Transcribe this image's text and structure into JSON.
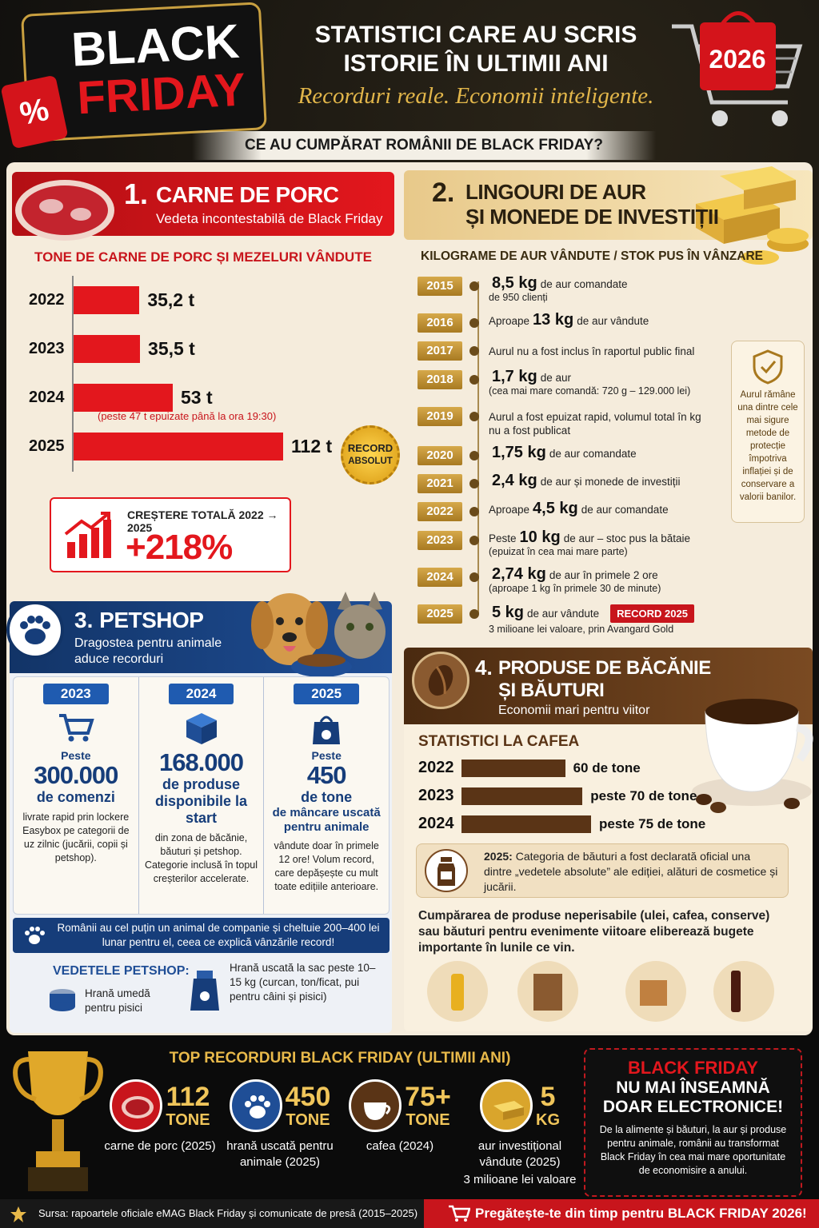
{
  "header": {
    "badge_line1": "BLACK",
    "badge_line2": "FRIDAY",
    "percent": "%",
    "title_line1": "STATISTICI CARE AU SCRIS",
    "title_line2": "ISTORIE ÎN ULTIMII ANI",
    "tagline": "Recorduri reale. Economii inteligente.",
    "year": "2026",
    "question": "CE AU CUMPĂRAT ROMÂNII DE BLACK FRIDAY?"
  },
  "pork": {
    "number": "1.",
    "title": "CARNE DE PORC",
    "subtitle": "Vedeta incontestabilă de Black Friday",
    "chart_title": "TONE DE CARNE DE PORC ȘI MEZELURI VÂNDUTE",
    "categories": [
      "2022",
      "2023",
      "2024",
      "2025"
    ],
    "values": [
      35.2,
      35.5,
      53,
      112
    ],
    "value_labels": [
      "35,2 t",
      "35,5 t",
      "53 t",
      "112 t"
    ],
    "color": "#e3171d",
    "note": "(peste 47 t epuizate până la ora 19:30)",
    "badge_line1": "RECORD",
    "badge_line2": "ABSOLUT",
    "growth_label": "CREȘTERE TOTALĂ 2022 → 2025",
    "growth_value": "+218%"
  },
  "gold": {
    "number": "2.",
    "title_line1": "LINGOURI DE AUR",
    "title_line2": "ȘI MONEDE DE INVESTIȚII",
    "subtitle": "KILOGRAME DE AUR VÂNDUTE / STOK PUS ÎN VÂNZARE",
    "timeline": [
      {
        "year": "2015",
        "big": "8,5 kg",
        "text": "de aur comandate",
        "detail": "de 950 clienți"
      },
      {
        "year": "2016",
        "pre": "Aproape",
        "big": "13 kg",
        "text": "de aur vândute"
      },
      {
        "year": "2017",
        "text": "Aurul nu a fost inclus în raportul public final"
      },
      {
        "year": "2018",
        "big": "1,7 kg",
        "text": "de aur",
        "detail": "(cea mai mare comandă: 720 g – 129.000 lei)"
      },
      {
        "year": "2019",
        "text": "Aurul a fost epuizat rapid, volumul total în kg",
        "detail": "nu a fost publicat"
      },
      {
        "year": "2020",
        "big": "1,75 kg",
        "text": "de aur comandate"
      },
      {
        "year": "2021",
        "big": "2,4 kg",
        "text": "de aur și monede de investiții"
      },
      {
        "year": "2022",
        "pre": "Aproape",
        "big": "4,5 kg",
        "text": "de aur comandate"
      },
      {
        "year": "2023",
        "pre": "Peste",
        "big": "10 kg",
        "text": "de aur – stoc pus la bătaie",
        "detail": "(epuizat în cea mai mare parte)"
      },
      {
        "year": "2024",
        "big": "2,74 kg",
        "text": "de aur în primele 2 ore",
        "detail": "(aproape 1 kg în primele 30 de minute)"
      },
      {
        "year": "2025",
        "big": "5 kg",
        "text": "de aur vândute",
        "badge": "RECORD 2025",
        "detail": "3 milioane lei valoare, prin Avangard Gold"
      }
    ],
    "side_note": "Aurul rămâne una dintre cele mai sigure metode de protecție împotriva inflației și de conservare a valorii banilor."
  },
  "pet": {
    "number": "3.",
    "title": "PETSHOP",
    "subtitle": "Dragostea pentru animale aduce recorduri",
    "columns": [
      {
        "year": "2023",
        "pre": "Peste",
        "big": "300.000",
        "unit": "de comenzi",
        "text": "livrate rapid prin lockere Easybox pe categorii de uz zilnic (jucării, copii și petshop)."
      },
      {
        "year": "2024",
        "big": "168.000",
        "unit": "de produse disponibile la start",
        "text": "din zona de băcănie, băuturi și petshop. Categorie inclusă în topul creșterilor accelerate."
      },
      {
        "year": "2025",
        "pre": "Peste",
        "big": "450",
        "unit": "de tone",
        "unit2": "de mâncare uscată pentru animale",
        "text": "vândute doar în primele 12 ore! Volum record, care depășește cu mult toate edițiile anterioare."
      }
    ],
    "banner": "Românii au cel puțin un animal de companie și cheltuie 200–400 lei lunar pentru el, ceea ce explică vânzările record!",
    "stars_title": "VEDETELE PETSHOP:",
    "stars": [
      "Hrană umedă pentru pisici",
      "Hrană uscată la sac peste 10–15 kg (curcan, ton/ficat, pui pentru câini și pisici)"
    ]
  },
  "grocery": {
    "number": "4.",
    "title_line1": "PRODUSE DE BĂCĂNIE",
    "title_line2": "ȘI BĂUTURI",
    "subtitle": "Economii mari pentru viitor",
    "chart_title": "STATISTICI LA CAFEA",
    "categories": [
      "2022",
      "2023",
      "2024"
    ],
    "values": [
      60,
      70,
      75
    ],
    "value_labels": [
      "60 de tone",
      "peste 70 de tone",
      "peste 75 de tone"
    ],
    "color": "#5a3416",
    "note_year": "2025:",
    "note": "Categoria de băuturi a fost declarată oficial una dintre „vedetele absolute” ale ediției, alături de cosmetice și jucării.",
    "text": "Cumpărarea de produse neperisabile (ulei, cafea, conserve) sau băuturi pentru evenimente viitoare eliberează bugete importante în lunile ce vin."
  },
  "records": {
    "title": "TOP RECORDURI BLACK FRIDAY (ULTIMII ANI)",
    "items": [
      {
        "value": "112",
        "unit": "TONE",
        "label": "carne de porc (2025)"
      },
      {
        "value": "450",
        "unit": "TONE",
        "label": "hrană uscată pentru animale (2025)"
      },
      {
        "value": "75+",
        "unit": "TONE",
        "label": "cafea (2024)"
      },
      {
        "value": "5",
        "unit": "KG",
        "label": "aur investițional vândute (2025)",
        "extra": "3 milioane lei valoare"
      }
    ]
  },
  "callout": {
    "line1": "BLACK FRIDAY",
    "line2": "NU MAI ÎNSEAMNĂ",
    "line3": "DOAR ELECTRONICE!",
    "text": "De la alimente și băuturi, la aur și produse pentru animale, românii au transformat Black Friday în cea mai mare oportunitate de economisire a anului."
  },
  "footer": {
    "source": "Sursa: rapoartele oficiale eMAG Black Friday și comunicate de presă (2015–2025)",
    "cta": "Pregătește-te din timp pentru BLACK FRIDAY 2026!"
  }
}
